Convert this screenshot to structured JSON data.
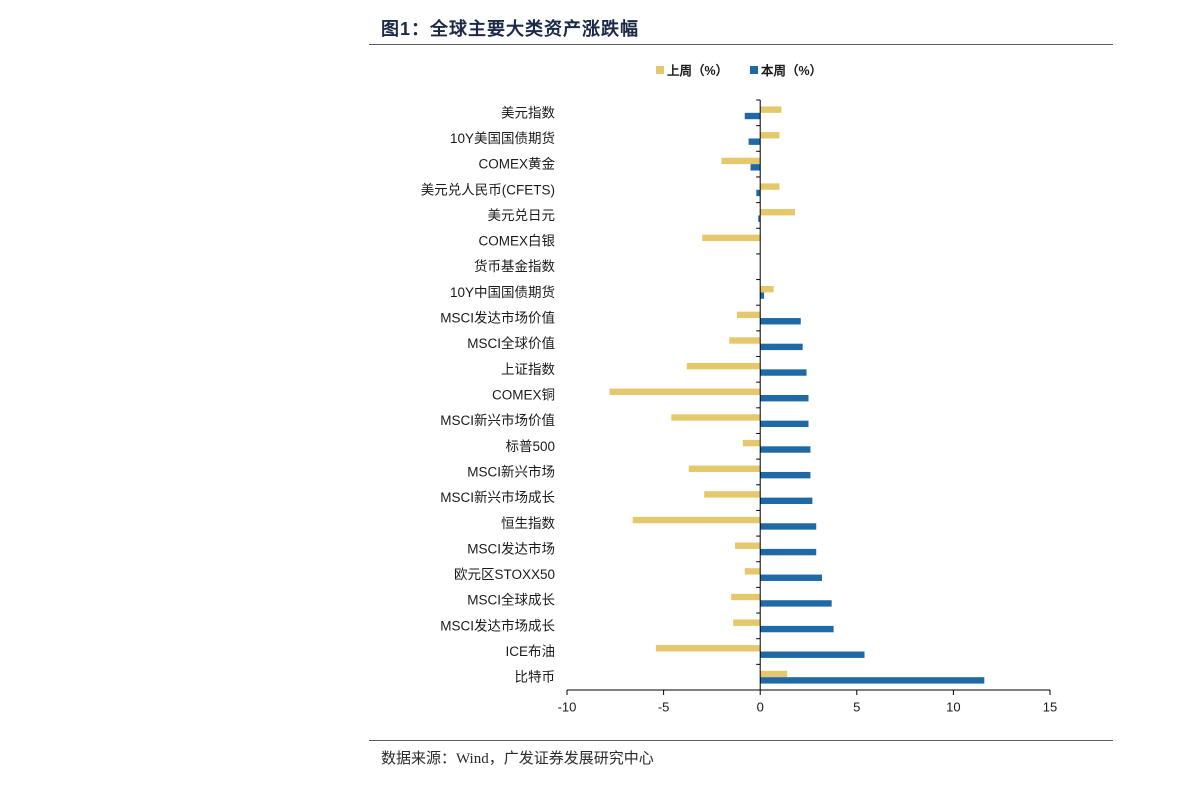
{
  "chart_data": {
    "type": "bar",
    "orientation": "horizontal",
    "title": "图1：全球主要大类资产涨跌幅",
    "source_note": "数据来源：Wind，广发证券发展研究中心",
    "categories": [
      "美元指数",
      "10Y美国国债期货",
      "COMEX黄金",
      "美元兑人民币(CFETS)",
      "美元兑日元",
      "COMEX白银",
      "货币基金指数",
      "10Y中国国债期货",
      "MSCI发达市场价值",
      "MSCI全球价值",
      "上证指数",
      "COMEX铜",
      "MSCI新兴市场价值",
      "标普500",
      "MSCI新兴市场",
      "MSCI新兴市场成长",
      "恒生指数",
      "MSCI发达市场",
      "欧元区STOXX50",
      "MSCI全球成长",
      "MSCI发达市场成长",
      "ICE布油",
      "比特币"
    ],
    "series": [
      {
        "name": "上周（%）",
        "color": "#E5C86B",
        "values": [
          1.1,
          1.0,
          -2.0,
          1.0,
          1.8,
          -3.0,
          0.0,
          0.7,
          -1.2,
          -1.6,
          -3.8,
          -7.8,
          -4.6,
          -0.9,
          -3.7,
          -2.9,
          -6.6,
          -1.3,
          -0.8,
          -1.5,
          -1.4,
          -5.4,
          1.4
        ]
      },
      {
        "name": "本周（%）",
        "color": "#1F6AA5",
        "values": [
          -0.8,
          -0.6,
          -0.5,
          -0.2,
          -0.1,
          0.0,
          0.0,
          0.2,
          2.1,
          2.2,
          2.4,
          2.5,
          2.5,
          2.6,
          2.6,
          2.7,
          2.9,
          2.9,
          3.2,
          3.7,
          3.8,
          5.4,
          11.6
        ]
      }
    ],
    "xlim": [
      -10,
      15
    ],
    "xticks": [
      -10,
      -5,
      0,
      5,
      10,
      15
    ],
    "xtick_labels": [
      "-10",
      "-5",
      "0",
      "5",
      "10",
      "15"
    ],
    "grid": false,
    "legend_position": "top"
  },
  "colors": {
    "title": "#1C2A48",
    "axis": "#000000",
    "rule": "#5C5C5C"
  }
}
